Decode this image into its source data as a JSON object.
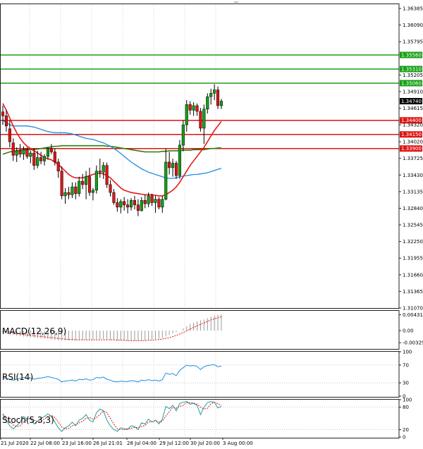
{
  "chart_data": [
    {
      "type": "candlestick",
      "ylim": [
        1.3095,
        1.3655
      ],
      "y_ticks": [
        "1.36385",
        "1.36090",
        "1.35795",
        "1.35205",
        "1.34910",
        "1.34615",
        "1.34320",
        "1.34020",
        "1.33725",
        "1.33430",
        "1.33135",
        "1.32840",
        "1.32545",
        "1.32250",
        "1.31955",
        "1.31660",
        "1.31365",
        "1.31070"
      ],
      "current_price": "1.34740",
      "resistance_levels": [
        {
          "label": "1.35560",
          "value": 1.3556
        },
        {
          "label": "1.35310",
          "value": 1.3531
        },
        {
          "label": "1.35060",
          "value": 1.3506
        }
      ],
      "support_levels": [
        {
          "label": "1.34400",
          "value": 1.344
        },
        {
          "label": "1.34150",
          "value": 1.3415
        },
        {
          "label": "1.33900",
          "value": 1.339
        }
      ],
      "colors": {
        "bull": "#14a014",
        "bear": "#e01414",
        "resistance": "#18a018",
        "support": "#e01414",
        "ma_fast": "#e81818",
        "ma_mid": "#1e8ee0",
        "ma_slow": "#2e7d10"
      },
      "x_labels": [
        "21 Jul 2020",
        "22 Jul 08:00",
        "23 Jul 16:00",
        "26 Jul 21:01",
        "28 Jul 04:00",
        "29 Jul 12:00",
        "30 Jul 20:00",
        "3 Aug 00:00"
      ],
      "candles": [
        {
          "o": 1.3455,
          "h": 1.3466,
          "l": 1.3432,
          "c": 1.3448
        },
        {
          "o": 1.3448,
          "h": 1.3458,
          "l": 1.342,
          "c": 1.343
        },
        {
          "o": 1.3425,
          "h": 1.344,
          "l": 1.3392,
          "c": 1.3402
        },
        {
          "o": 1.34,
          "h": 1.3408,
          "l": 1.3368,
          "c": 1.3378
        },
        {
          "o": 1.3378,
          "h": 1.3392,
          "l": 1.3366,
          "c": 1.3386
        },
        {
          "o": 1.3386,
          "h": 1.3398,
          "l": 1.3374,
          "c": 1.338
        },
        {
          "o": 1.338,
          "h": 1.3394,
          "l": 1.337,
          "c": 1.3388
        },
        {
          "o": 1.3388,
          "h": 1.3392,
          "l": 1.3372,
          "c": 1.3376
        },
        {
          "o": 1.3376,
          "h": 1.3386,
          "l": 1.3364,
          "c": 1.3382
        },
        {
          "o": 1.3382,
          "h": 1.339,
          "l": 1.3352,
          "c": 1.336
        },
        {
          "o": 1.336,
          "h": 1.3386,
          "l": 1.3355,
          "c": 1.3374
        },
        {
          "o": 1.3374,
          "h": 1.3384,
          "l": 1.3362,
          "c": 1.3368
        },
        {
          "o": 1.3368,
          "h": 1.338,
          "l": 1.336,
          "c": 1.3376
        },
        {
          "o": 1.3376,
          "h": 1.3392,
          "l": 1.337,
          "c": 1.339
        },
        {
          "o": 1.339,
          "h": 1.3398,
          "l": 1.338,
          "c": 1.3384
        },
        {
          "o": 1.3384,
          "h": 1.339,
          "l": 1.336,
          "c": 1.3366
        },
        {
          "o": 1.3366,
          "h": 1.3372,
          "l": 1.3338,
          "c": 1.335
        },
        {
          "o": 1.335,
          "h": 1.3358,
          "l": 1.33,
          "c": 1.3306
        },
        {
          "o": 1.3306,
          "h": 1.332,
          "l": 1.3292,
          "c": 1.3312
        },
        {
          "o": 1.3312,
          "h": 1.3322,
          "l": 1.33,
          "c": 1.3308
        },
        {
          "o": 1.3308,
          "h": 1.333,
          "l": 1.3302,
          "c": 1.3322
        },
        {
          "o": 1.3322,
          "h": 1.333,
          "l": 1.33,
          "c": 1.331
        },
        {
          "o": 1.331,
          "h": 1.334,
          "l": 1.3305,
          "c": 1.3332
        },
        {
          "o": 1.3332,
          "h": 1.3345,
          "l": 1.3318,
          "c": 1.3326
        },
        {
          "o": 1.3326,
          "h": 1.335,
          "l": 1.33,
          "c": 1.334
        },
        {
          "o": 1.334,
          "h": 1.3356,
          "l": 1.3306,
          "c": 1.3312
        },
        {
          "o": 1.3312,
          "h": 1.332,
          "l": 1.3298,
          "c": 1.3316
        },
        {
          "o": 1.3316,
          "h": 1.336,
          "l": 1.331,
          "c": 1.335
        },
        {
          "o": 1.335,
          "h": 1.3372,
          "l": 1.3338,
          "c": 1.3348
        },
        {
          "o": 1.3348,
          "h": 1.3366,
          "l": 1.3336,
          "c": 1.336
        },
        {
          "o": 1.336,
          "h": 1.3365,
          "l": 1.332,
          "c": 1.3326
        },
        {
          "o": 1.3326,
          "h": 1.3334,
          "l": 1.3305,
          "c": 1.3312
        },
        {
          "o": 1.3312,
          "h": 1.3318,
          "l": 1.329,
          "c": 1.3294
        },
        {
          "o": 1.3294,
          "h": 1.3302,
          "l": 1.3278,
          "c": 1.3286
        },
        {
          "o": 1.3286,
          "h": 1.33,
          "l": 1.3275,
          "c": 1.3296
        },
        {
          "o": 1.3296,
          "h": 1.3304,
          "l": 1.328,
          "c": 1.329
        },
        {
          "o": 1.329,
          "h": 1.33,
          "l": 1.3275,
          "c": 1.3286
        },
        {
          "o": 1.3286,
          "h": 1.3302,
          "l": 1.328,
          "c": 1.3298
        },
        {
          "o": 1.3298,
          "h": 1.3306,
          "l": 1.3282,
          "c": 1.329
        },
        {
          "o": 1.329,
          "h": 1.33,
          "l": 1.327,
          "c": 1.328
        },
        {
          "o": 1.328,
          "h": 1.3304,
          "l": 1.3278,
          "c": 1.3298
        },
        {
          "o": 1.3298,
          "h": 1.3308,
          "l": 1.3284,
          "c": 1.3292
        },
        {
          "o": 1.3292,
          "h": 1.3312,
          "l": 1.3286,
          "c": 1.3306
        },
        {
          "o": 1.3306,
          "h": 1.331,
          "l": 1.3288,
          "c": 1.3294
        },
        {
          "o": 1.3294,
          "h": 1.3306,
          "l": 1.3276,
          "c": 1.33
        },
        {
          "o": 1.33,
          "h": 1.3304,
          "l": 1.3282,
          "c": 1.3286
        },
        {
          "o": 1.3286,
          "h": 1.3306,
          "l": 1.3276,
          "c": 1.33
        },
        {
          "o": 1.33,
          "h": 1.339,
          "l": 1.3298,
          "c": 1.3366
        },
        {
          "o": 1.3366,
          "h": 1.3384,
          "l": 1.3344,
          "c": 1.3356
        },
        {
          "o": 1.3356,
          "h": 1.3372,
          "l": 1.334,
          "c": 1.3364
        },
        {
          "o": 1.3364,
          "h": 1.3368,
          "l": 1.3336,
          "c": 1.3342
        },
        {
          "o": 1.3342,
          "h": 1.3405,
          "l": 1.3336,
          "c": 1.3396
        },
        {
          "o": 1.3396,
          "h": 1.344,
          "l": 1.3385,
          "c": 1.3432
        },
        {
          "o": 1.3432,
          "h": 1.3476,
          "l": 1.342,
          "c": 1.3468
        },
        {
          "o": 1.3468,
          "h": 1.3474,
          "l": 1.345,
          "c": 1.3458
        },
        {
          "o": 1.3458,
          "h": 1.3472,
          "l": 1.3448,
          "c": 1.3466
        },
        {
          "o": 1.3466,
          "h": 1.347,
          "l": 1.3448,
          "c": 1.3456
        },
        {
          "o": 1.3456,
          "h": 1.3462,
          "l": 1.342,
          "c": 1.3426
        },
        {
          "o": 1.3426,
          "h": 1.3468,
          "l": 1.3398,
          "c": 1.346
        },
        {
          "o": 1.346,
          "h": 1.3488,
          "l": 1.3452,
          "c": 1.3482
        },
        {
          "o": 1.3482,
          "h": 1.3496,
          "l": 1.3468,
          "c": 1.3488
        },
        {
          "o": 1.3488,
          "h": 1.3504,
          "l": 1.3476,
          "c": 1.3494
        },
        {
          "o": 1.3494,
          "h": 1.35,
          "l": 1.346,
          "c": 1.3466
        },
        {
          "o": 1.3466,
          "h": 1.3478,
          "l": 1.346,
          "c": 1.3474
        }
      ],
      "ma_fast": [
        1.347,
        1.3458,
        1.3444,
        1.343,
        1.3418,
        1.3408,
        1.34,
        1.3394,
        1.339,
        1.3386,
        1.3382,
        1.3378,
        1.3374,
        1.3372,
        1.337,
        1.3366,
        1.3362,
        1.3356,
        1.335,
        1.3344,
        1.334,
        1.3338,
        1.3338,
        1.3338,
        1.334,
        1.3342,
        1.3344,
        1.3346,
        1.3346,
        1.3345,
        1.3342,
        1.3338,
        1.3332,
        1.3326,
        1.332,
        1.3316,
        1.3314,
        1.3312,
        1.3311,
        1.331,
        1.3309,
        1.3308,
        1.3308,
        1.3308,
        1.3307,
        1.3306,
        1.3306,
        1.3308,
        1.3312,
        1.3316,
        1.3322,
        1.333,
        1.334,
        1.335,
        1.336,
        1.3368,
        1.3376,
        1.3384,
        1.3392,
        1.3402,
        1.3412,
        1.3422,
        1.343,
        1.3438
      ],
      "ma_mid": [
        1.344,
        1.3436,
        1.3432,
        1.343,
        1.343,
        1.343,
        1.343,
        1.343,
        1.3429,
        1.3428,
        1.3426,
        1.3424,
        1.3422,
        1.342,
        1.3419,
        1.3418,
        1.3418,
        1.3418,
        1.3418,
        1.3417,
        1.3416,
        1.3414,
        1.3412,
        1.341,
        1.3408,
        1.3407,
        1.3406,
        1.3404,
        1.3402,
        1.34,
        1.3397,
        1.3394,
        1.339,
        1.3386,
        1.3381,
        1.3376,
        1.3371,
        1.3366,
        1.3362,
        1.3358,
        1.3354,
        1.3351,
        1.3348,
        1.3346,
        1.3344,
        1.3342,
        1.334,
        1.3338,
        1.3337,
        1.3337,
        1.3338,
        1.334,
        1.3341,
        1.3342,
        1.3343,
        1.3344,
        1.3344,
        1.3345,
        1.3346,
        1.3347,
        1.3349,
        1.3351,
        1.3353,
        1.3355
      ],
      "ma_slow": [
        1.338,
        1.3382,
        1.3384,
        1.3385,
        1.3386,
        1.3387,
        1.3388,
        1.3388,
        1.3388,
        1.3388,
        1.3389,
        1.339,
        1.3391,
        1.3392,
        1.3393,
        1.3394,
        1.3394,
        1.3395,
        1.3395,
        1.3395,
        1.3395,
        1.3395,
        1.3395,
        1.3395,
        1.3395,
        1.3395,
        1.3395,
        1.3395,
        1.3395,
        1.3395,
        1.3394,
        1.3394,
        1.3393,
        1.3392,
        1.3391,
        1.339,
        1.3389,
        1.3388,
        1.3387,
        1.3386,
        1.3385,
        1.3384,
        1.3384,
        1.3384,
        1.3384,
        1.3384,
        1.3385,
        1.3385,
        1.3386,
        1.3386,
        1.3386,
        1.3386,
        1.3387,
        1.3387,
        1.3387,
        1.3388,
        1.3388,
        1.3388,
        1.3388,
        1.3389,
        1.339,
        1.339,
        1.3391,
        1.3391
      ]
    },
    {
      "type": "macd",
      "title": "MACD(12,26,9)",
      "y_ticks": [
        "0.004312",
        "0.00",
        "-0.00329"
      ],
      "ylim": [
        -0.0042,
        0.0048
      ],
      "histogram": [
        -0.0006,
        -0.0008,
        -0.001,
        -0.0012,
        -0.0014,
        -0.0015,
        -0.0016,
        -0.0017,
        -0.0018,
        -0.0019,
        -0.002,
        -0.0021,
        -0.0022,
        -0.0023,
        -0.0024,
        -0.0025,
        -0.0026,
        -0.0027,
        -0.0027,
        -0.0027,
        -0.0027,
        -0.0026,
        -0.0026,
        -0.0025,
        -0.0024,
        -0.0024,
        -0.0024,
        -0.0023,
        -0.0023,
        -0.0023,
        -0.0024,
        -0.0025,
        -0.0026,
        -0.0027,
        -0.0027,
        -0.0028,
        -0.0028,
        -0.0028,
        -0.0028,
        -0.0028,
        -0.0027,
        -0.0026,
        -0.0025,
        -0.0024,
        -0.0023,
        -0.0022,
        -0.002,
        -0.0016,
        -0.0012,
        -0.0008,
        -0.0004,
        0.0,
        0.0006,
        0.0012,
        0.0018,
        0.0022,
        0.0025,
        0.0028,
        0.003,
        0.0034,
        0.0038,
        0.0041,
        0.0043,
        0.0044
      ],
      "signal": [
        -0.0002,
        -0.0003,
        -0.0005,
        -0.0006,
        -0.0008,
        -0.0009,
        -0.0011,
        -0.0012,
        -0.0013,
        -0.0014,
        -0.0015,
        -0.0016,
        -0.0017,
        -0.0018,
        -0.0019,
        -0.002,
        -0.0021,
        -0.0022,
        -0.0023,
        -0.0024,
        -0.0024,
        -0.0025,
        -0.0025,
        -0.0025,
        -0.0025,
        -0.0025,
        -0.0025,
        -0.0025,
        -0.0025,
        -0.0025,
        -0.0025,
        -0.0025,
        -0.0025,
        -0.0026,
        -0.0026,
        -0.0026,
        -0.0027,
        -0.0027,
        -0.0027,
        -0.0027,
        -0.0027,
        -0.0027,
        -0.0026,
        -0.0026,
        -0.0025,
        -0.0024,
        -0.0023,
        -0.0021,
        -0.0019,
        -0.0016,
        -0.0013,
        -0.0009,
        -0.0005,
        -0.0001,
        0.0004,
        0.0009,
        0.0013,
        0.0017,
        0.0021,
        0.0025,
        0.0029,
        0.0032,
        0.0035,
        0.0038
      ]
    },
    {
      "type": "line",
      "title": "RSI(14)",
      "y_ticks": [
        "100",
        "70",
        "30",
        "0"
      ],
      "ylim": [
        0,
        100
      ],
      "values": [
        42,
        40,
        38,
        36,
        38,
        40,
        42,
        40,
        41,
        38,
        40,
        41,
        42,
        44,
        42,
        40,
        38,
        32,
        34,
        35,
        36,
        34,
        38,
        37,
        39,
        36,
        37,
        42,
        41,
        43,
        38,
        36,
        33,
        32,
        34,
        33,
        33,
        35,
        34,
        32,
        36,
        35,
        37,
        35,
        36,
        34,
        37,
        52,
        49,
        51,
        46,
        58,
        64,
        70,
        68,
        69,
        67,
        60,
        66,
        69,
        70,
        71,
        66,
        68
      ]
    },
    {
      "type": "line",
      "title": "Stoch(5,3,3)",
      "y_ticks": [
        "100",
        "80",
        "20",
        "0"
      ],
      "ylim": [
        0,
        100
      ],
      "k": [
        60,
        45,
        30,
        22,
        30,
        40,
        55,
        48,
        50,
        35,
        42,
        50,
        55,
        62,
        55,
        40,
        25,
        15,
        25,
        30,
        40,
        30,
        45,
        50,
        60,
        45,
        40,
        65,
        75,
        70,
        45,
        30,
        20,
        15,
        25,
        22,
        20,
        30,
        28,
        20,
        38,
        35,
        48,
        40,
        45,
        35,
        48,
        82,
        76,
        85,
        70,
        90,
        93,
        95,
        88,
        90,
        85,
        60,
        80,
        92,
        95,
        93,
        78,
        82
      ],
      "d": [
        62,
        52,
        42,
        32,
        28,
        30,
        40,
        48,
        50,
        45,
        42,
        42,
        48,
        55,
        58,
        52,
        40,
        27,
        22,
        23,
        30,
        33,
        38,
        42,
        50,
        52,
        48,
        52,
        60,
        70,
        65,
        50,
        35,
        22,
        20,
        20,
        22,
        23,
        26,
        25,
        28,
        31,
        40,
        41,
        44,
        40,
        42,
        56,
        68,
        80,
        77,
        82,
        85,
        92,
        92,
        91,
        88,
        80,
        75,
        77,
        89,
        93,
        89,
        85
      ]
    }
  ]
}
